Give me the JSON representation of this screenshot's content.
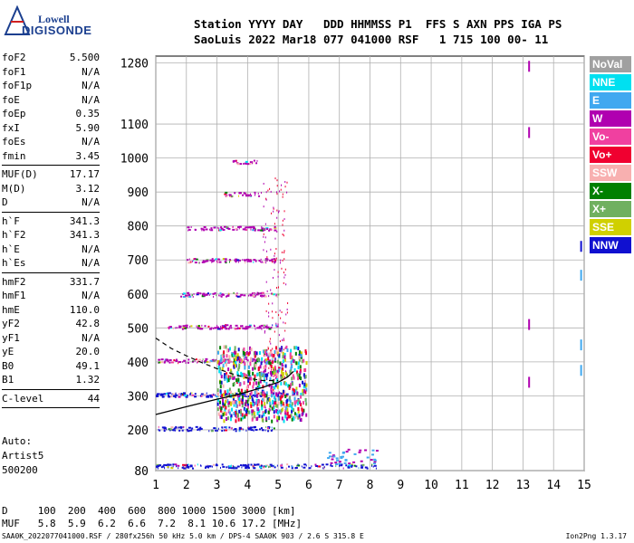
{
  "logo": {
    "line1": "Lowell",
    "line2": "DIGISONDE"
  },
  "header": {
    "labels": "Station YYYY DAY   DDD HHMMSS P1  FFS S AXN PPS IGA PS",
    "values": "SaoLuis 2022 Mar18 077 041000 RSF   1 715 100 00- 11"
  },
  "params": [
    {
      "name": "foF2",
      "value": "5.500"
    },
    {
      "name": "foF1",
      "value": "N/A"
    },
    {
      "name": "foF1p",
      "value": "N/A"
    },
    {
      "name": "foE",
      "value": "N/A"
    },
    {
      "name": "foEp",
      "value": "0.35"
    },
    {
      "name": "fxI",
      "value": "5.90"
    },
    {
      "name": "foEs",
      "value": "N/A"
    },
    {
      "name": "fmin",
      "value": "3.45"
    },
    {
      "sep": true
    },
    {
      "name": "MUF(D)",
      "value": "17.17"
    },
    {
      "name": "M(D)",
      "value": "3.12"
    },
    {
      "name": "D",
      "value": "N/A"
    },
    {
      "sep": true
    },
    {
      "name": "h`F",
      "value": "341.3"
    },
    {
      "name": "h`F2",
      "value": "341.3"
    },
    {
      "name": "h`E",
      "value": "N/A"
    },
    {
      "name": "h`Es",
      "value": "N/A"
    },
    {
      "sep": true
    },
    {
      "name": "hmF2",
      "value": "331.7"
    },
    {
      "name": "hmF1",
      "value": "N/A"
    },
    {
      "name": "hmE",
      "value": "110.0"
    },
    {
      "name": "yF2",
      "value": "42.8"
    },
    {
      "name": "yF1",
      "value": "N/A"
    },
    {
      "name": "yE",
      "value": "20.0"
    },
    {
      "name": "B0",
      "value": "49.1"
    },
    {
      "name": "B1",
      "value": "1.32"
    },
    {
      "sep": true
    }
  ],
  "clevel": {
    "label": "C-level",
    "value": "44"
  },
  "autoscale": {
    "line1": "Auto:",
    "line2": "Artist5",
    "line3": "500200"
  },
  "footer": {
    "d_row": "D     100  200  400  600  800 1000 1500 3000 [km]",
    "muf_row": "MUF   5.8  5.9  6.2  6.6  7.2  8.1 10.6 17.2 [MHz]",
    "sigline": "SAA0K_2022077041000.RSF / 280fx256h 50 kHz 5.0 km / DPS-4 SAA0K 903 / 2.6 S 315.8 E",
    "version": "Ion2Png 1.3.17"
  },
  "legend": [
    {
      "label": "NoVal",
      "color": "#a0a0a0"
    },
    {
      "label": "NNE",
      "color": "#00e0f0"
    },
    {
      "label": "E",
      "color": "#40a8f0"
    },
    {
      "label": "W",
      "color": "#b000b0"
    },
    {
      "label": "Vo-",
      "color": "#f040a0"
    },
    {
      "label": "Vo+",
      "color": "#f00030"
    },
    {
      "label": "SSW",
      "color": "#f8b0b0"
    },
    {
      "label": "X-",
      "color": "#008000"
    },
    {
      "label": "X+",
      "color": "#70b060"
    },
    {
      "label": "SSE",
      "color": "#d0d000"
    },
    {
      "label": "NNW",
      "color": "#1010d0"
    }
  ],
  "chart_data": {
    "type": "scatter",
    "title": "",
    "xlabel": "",
    "ylabel": "",
    "xlim": [
      1,
      15
    ],
    "ylim": [
      80,
      1300
    ],
    "x_ticks": [
      1,
      2,
      3,
      4,
      5,
      6,
      7,
      8,
      9,
      10,
      11,
      12,
      13,
      14,
      15
    ],
    "y_ticks": [
      80,
      200,
      300,
      400,
      500,
      600,
      700,
      800,
      900,
      1000,
      1100,
      1280
    ],
    "grid": true,
    "profile_curve": [
      [
        1.0,
        245
      ],
      [
        2.0,
        268
      ],
      [
        3.0,
        290
      ],
      [
        3.5,
        300
      ],
      [
        4.0,
        312
      ],
      [
        4.5,
        325
      ],
      [
        5.0,
        340
      ],
      [
        5.3,
        355
      ],
      [
        5.5,
        372
      ]
    ],
    "dashed_curve": [
      [
        1.0,
        470
      ],
      [
        1.5,
        440
      ],
      [
        2.0,
        418
      ],
      [
        2.5,
        398
      ],
      [
        3.0,
        380
      ],
      [
        3.5,
        365
      ],
      [
        4.0,
        352
      ],
      [
        4.5,
        345
      ],
      [
        5.0,
        345
      ]
    ],
    "traces": [
      {
        "name": "bottom-echo-band",
        "freq_range": [
          1.0,
          8.2
        ],
        "height": 95,
        "color": "#1010d0"
      },
      {
        "name": "band-205",
        "freq_range": [
          1.0,
          4.9
        ],
        "height": 205,
        "color": "#1010d0"
      },
      {
        "name": "band-300",
        "freq_range": [
          1.0,
          5.3
        ],
        "height": 305,
        "color": "#1010d0"
      },
      {
        "name": "band-405",
        "freq_range": [
          1.0,
          5.0
        ],
        "height": 405,
        "color": "#b000b0"
      },
      {
        "name": "band-505",
        "freq_range": [
          1.3,
          5.0
        ],
        "height": 505,
        "color": "#b000b0"
      },
      {
        "name": "band-600",
        "freq_range": [
          1.8,
          5.0
        ],
        "height": 600,
        "color": "#b000b0"
      },
      {
        "name": "band-700",
        "freq_range": [
          2.0,
          4.9
        ],
        "height": 700,
        "color": "#b000b0"
      },
      {
        "name": "band-790",
        "freq_range": [
          2.0,
          4.9
        ],
        "height": 795,
        "color": "#b000b0"
      },
      {
        "name": "band-895",
        "freq_range": [
          3.2,
          4.5
        ],
        "height": 895,
        "color": "#b000b0"
      },
      {
        "name": "band-990",
        "freq_range": [
          3.5,
          4.3
        ],
        "height": 990,
        "color": "#b000b0"
      }
    ],
    "isolated_marks": [
      {
        "f": 13.2,
        "h": 1270,
        "color": "#b000b0"
      },
      {
        "f": 13.2,
        "h": 1075,
        "color": "#b000b0"
      },
      {
        "f": 13.2,
        "h": 510,
        "color": "#b000b0"
      },
      {
        "f": 13.2,
        "h": 340,
        "color": "#b000b0"
      },
      {
        "f": 14.9,
        "h": 740,
        "color": "#1010d0"
      },
      {
        "f": 14.9,
        "h": 655,
        "color": "#40a8f0"
      },
      {
        "f": 14.9,
        "h": 450,
        "color": "#40a8f0"
      },
      {
        "f": 14.9,
        "h": 375,
        "color": "#40a8f0"
      }
    ]
  }
}
